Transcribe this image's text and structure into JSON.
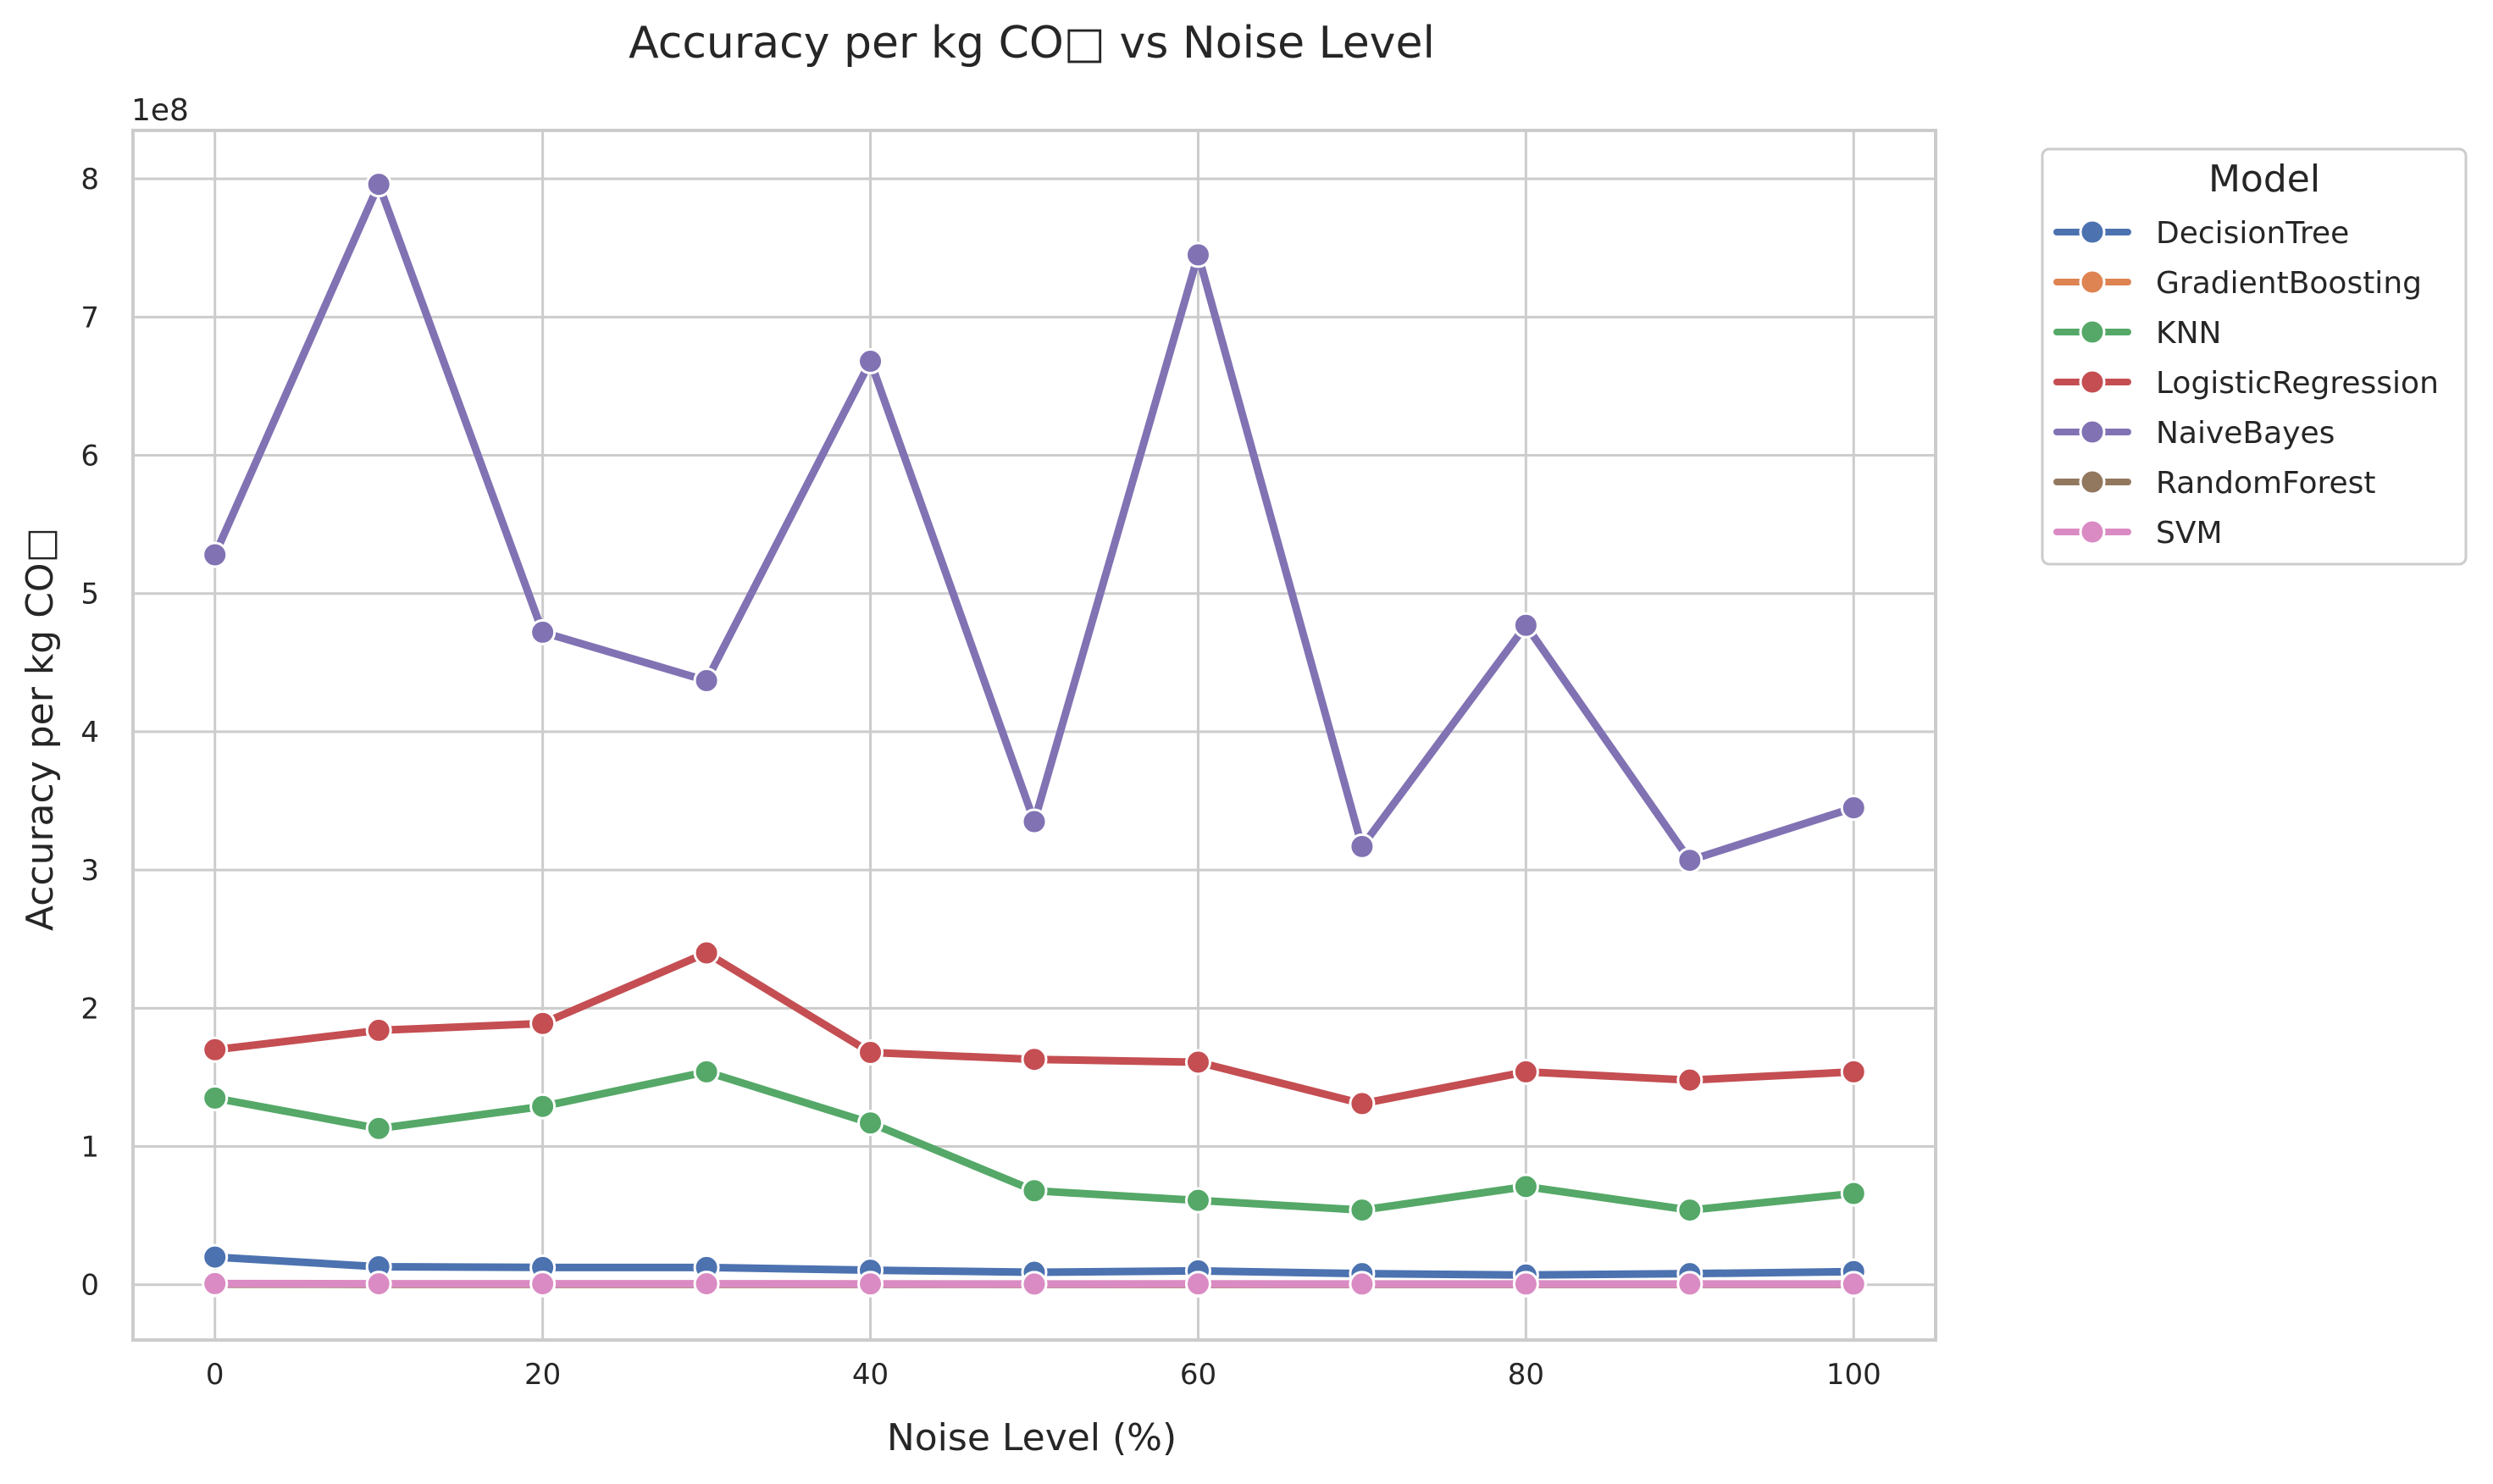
{
  "chart_data": {
    "type": "line",
    "title": "Accuracy per kg CO□ vs Noise Level",
    "xlabel": "Noise Level (%)",
    "ylabel": "Accuracy per kg CO□",
    "y_offset_label": "1e8",
    "y_scale": 100000000,
    "xlim": [
      -5,
      105
    ],
    "ylim": [
      -0.4,
      8.35
    ],
    "x_ticks": [
      0,
      20,
      40,
      60,
      80,
      100
    ],
    "y_ticks": [
      0,
      1,
      2,
      3,
      4,
      5,
      6,
      7,
      8
    ],
    "grid": true,
    "legend": {
      "title": "Model",
      "placement": "upper-right-outside"
    },
    "x": [
      0,
      10,
      20,
      30,
      40,
      50,
      60,
      70,
      80,
      90,
      100
    ],
    "series": [
      {
        "name": "DecisionTree",
        "color": "#4c72b0",
        "values": [
          0.2,
          0.13,
          0.125,
          0.125,
          0.105,
          0.09,
          0.1,
          0.08,
          0.07,
          0.08,
          0.095
        ]
      },
      {
        "name": "GradientBoosting",
        "color": "#dd8452",
        "values": [
          0.005,
          0.004,
          0.004,
          0.004,
          0.004,
          0.003,
          0.003,
          0.003,
          0.003,
          0.003,
          0.003
        ]
      },
      {
        "name": "KNN",
        "color": "#55a868",
        "values": [
          1.35,
          1.13,
          1.29,
          1.54,
          1.17,
          0.68,
          0.61,
          0.54,
          0.71,
          0.54,
          0.66
        ]
      },
      {
        "name": "LogisticRegression",
        "color": "#c44e52",
        "values": [
          1.7,
          1.84,
          1.89,
          2.4,
          1.68,
          1.63,
          1.61,
          1.31,
          1.54,
          1.48,
          1.54
        ]
      },
      {
        "name": "NaiveBayes",
        "color": "#8172b3",
        "values": [
          5.28,
          7.96,
          4.72,
          4.37,
          6.68,
          3.35,
          7.45,
          3.17,
          4.77,
          3.07,
          3.45
        ]
      },
      {
        "name": "RandomForest",
        "color": "#937860",
        "values": [
          0.004,
          0.003,
          0.003,
          0.003,
          0.003,
          0.003,
          0.003,
          0.003,
          0.003,
          0.003,
          0.003
        ]
      },
      {
        "name": "SVM",
        "color": "#da8bc3",
        "values": [
          0.008,
          0.007,
          0.007,
          0.007,
          0.006,
          0.005,
          0.006,
          0.005,
          0.005,
          0.005,
          0.005
        ]
      }
    ]
  }
}
